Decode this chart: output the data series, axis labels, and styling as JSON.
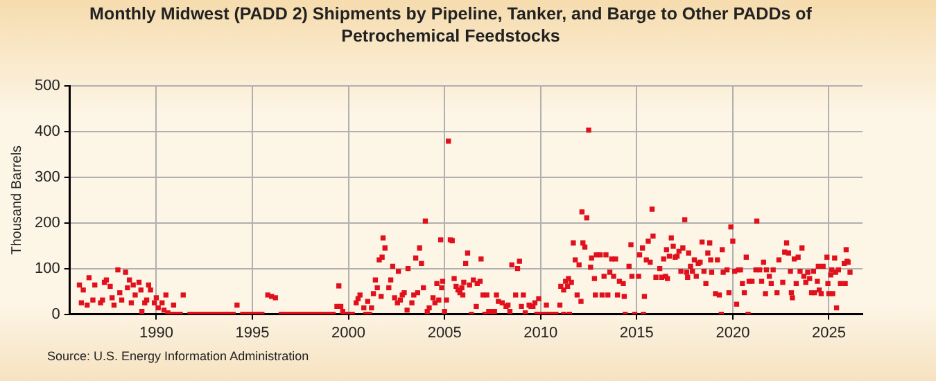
{
  "chart_data": {
    "type": "scatter",
    "title": "Monthly Midwest (PADD 2) Shipments by Pipeline, Tanker, and Barge to Other PADDs of Petrochemical Feedstocks",
    "ylabel": "Thousand Barrels",
    "annotations": [
      "Source: U.S. Energy Information Administration"
    ],
    "xlim": [
      1985.5,
      2026.75
    ],
    "xticks": [
      1990,
      1995,
      2000,
      2005,
      2010,
      2015,
      2020,
      2025
    ],
    "ylim": [
      0,
      500
    ],
    "yticks": [
      0,
      100,
      200,
      300,
      400,
      500
    ],
    "grid": true,
    "legend": false,
    "marker": "square",
    "x": [
      1986.0,
      1986.2,
      1986.5,
      1986.1,
      1986.4,
      1986.8,
      1986.7,
      1987.1,
      1987.3,
      1987.4,
      1987.6,
      1987.2,
      1987.7,
      1987.8,
      1988.0,
      1988.1,
      1988.2,
      1988.4,
      1988.5,
      1988.6,
      1988.8,
      1988.7,
      1988.9,
      1989.1,
      1989.2,
      1989.25,
      1989.4,
      1989.5,
      1989.6,
      1989.7,
      1989.9,
      1990.0,
      1990.1,
      1990.3,
      1990.4,
      1990.5,
      1990.6,
      1990.9,
      1991.4,
      1994.2,
      1995.8,
      1996.0,
      1996.2,
      1990.75,
      1991.0,
      1991.25,
      1991.75,
      1992.0,
      1992.25,
      1992.5,
      1992.75,
      1993.0,
      1993.25,
      1993.5,
      1993.75,
      1994.0,
      1994.5,
      1994.75,
      1995.0,
      1995.25,
      1995.5,
      1996.5,
      1996.75,
      1997.0,
      1997.25,
      1997.5,
      1997.75,
      1998.0,
      1998.25,
      1998.5,
      1998.75,
      1999.0,
      1999.2,
      1999.8,
      2000.0,
      2000.2,
      2000.9,
      2001.1,
      1999.5,
      1999.4,
      1999.6,
      1999.7,
      2000.5,
      2000.4,
      2000.6,
      2000.8,
      2001.0,
      2001.2,
      2001.3,
      2001.4,
      2001.5,
      2001.7,
      2001.6,
      2001.75,
      2001.8,
      2001.9,
      2002.1,
      2002.2,
      2002.3,
      2002.4,
      2002.55,
      2002.6,
      2002.7,
      2002.8,
      2002.9,
      2003.05,
      2003.1,
      2003.3,
      2003.4,
      2003.5,
      2003.6,
      2003.7,
      2003.8,
      2003.9,
      2004.0,
      2004.1,
      2004.2,
      2004.4,
      2004.5,
      2004.6,
      2004.7,
      2004.8,
      2004.85,
      2004.9,
      2005.0,
      2005.1,
      2005.2,
      2005.3,
      2005.4,
      2005.5,
      2005.6,
      2005.7,
      2005.8,
      2005.9,
      2005.95,
      2006.0,
      2006.1,
      2006.2,
      2006.3,
      2006.4,
      2006.5,
      2006.65,
      2006.7,
      2006.85,
      2006.9,
      2007.0,
      2007.1,
      2007.2,
      2007.3,
      2007.5,
      2007.6,
      2007.7,
      2007.8,
      2008.0,
      2008.2,
      2008.3,
      2008.4,
      2008.5,
      2008.7,
      2008.8,
      2008.9,
      2009.0,
      2009.1,
      2009.2,
      2009.4,
      2009.5,
      2009.6,
      2009.7,
      2009.9,
      2010.0,
      2010.3,
      2010.6,
      2011.0,
      2011.05,
      2011.2,
      2011.3,
      2011.4,
      2011.45,
      2011.5,
      2011.6,
      2011.7,
      2011.8,
      2011.9,
      2012.0,
      2012.1,
      2012.15,
      2012.2,
      2012.3,
      2012.4,
      2012.5,
      2012.6,
      2012.65,
      2012.8,
      2012.85,
      2012.9,
      2013.1,
      2013.2,
      2013.3,
      2013.4,
      2013.5,
      2013.6,
      2013.7,
      2013.8,
      2013.9,
      2014.0,
      2014.1,
      2014.3,
      2014.35,
      2014.4,
      2014.6,
      2014.7,
      2014.75,
      2009.8,
      2010.2,
      2010.4,
      2010.8,
      2011.2,
      2014.9,
      2015.1,
      2015.15,
      2015.3,
      2015.4,
      2015.35,
      2015.5,
      2015.6,
      2015.7,
      2015.8,
      2015.85,
      2016.0,
      2016.2,
      2016.3,
      2016.4,
      2016.5,
      2016.55,
      2016.6,
      2016.7,
      2016.8,
      2016.9,
      2017.0,
      2017.1,
      2017.2,
      2017.3,
      2017.4,
      2017.5,
      2017.6,
      2017.65,
      2017.7,
      2017.8,
      2017.9,
      2018.0,
      2018.1,
      2018.2,
      2018.3,
      2018.4,
      2018.5,
      2018.6,
      2018.7,
      2018.8,
      2018.85,
      2018.9,
      2019.1,
      2019.2,
      2019.3,
      2019.4,
      2019.45,
      2019.5,
      2019.7,
      2019.8,
      2019.9,
      2020.0,
      2020.1,
      2020.2,
      2020.3,
      2020.4,
      2020.5,
      2020.6,
      2020.7,
      2020.8,
      2020.85,
      2021.0,
      2021.2,
      2021.25,
      2021.4,
      2021.5,
      2021.6,
      2021.7,
      2021.75,
      2021.9,
      2022.0,
      2022.1,
      2022.3,
      2022.4,
      2022.6,
      2022.7,
      2022.8,
      2022.9,
      2023.0,
      2023.05,
      2023.1,
      2023.2,
      2023.3,
      2023.4,
      2023.5,
      2023.6,
      2023.7,
      2023.8,
      2023.9,
      2024.0,
      2024.1,
      2024.2,
      2024.25,
      2024.4,
      2024.45,
      2024.5,
      2024.6,
      2024.7,
      2024.9,
      2024.95,
      2025.0,
      2025.1,
      2025.15,
      2025.2,
      2025.3,
      2025.35,
      2025.4,
      2025.5,
      2025.6,
      2025.8,
      2025.85,
      2025.9,
      2025.95,
      2026.0,
      2026.1
    ],
    "series": [
      {
        "color": "#e0101c",
        "values": [
          64,
          53,
          80,
          25,
          20,
          64,
          31,
          25,
          70,
          75,
          61,
          31,
          36,
          20,
          97,
          47,
          31,
          92,
          58,
          75,
          64,
          25,
          42,
          70,
          53,
          6,
          25,
          31,
          64,
          53,
          25,
          36,
          14,
          25,
          9,
          42,
          3,
          20,
          42,
          20,
          42,
          39,
          36,
          0,
          0,
          0,
          0,
          0,
          0,
          0,
          0,
          0,
          0,
          0,
          0,
          0,
          0,
          0,
          0,
          0,
          0,
          0,
          0,
          0,
          0,
          0,
          0,
          0,
          0,
          0,
          0,
          0,
          0,
          0,
          0,
          0,
          0,
          0,
          62,
          17,
          17,
          6,
          34,
          25,
          42,
          14,
          28,
          14,
          45,
          75,
          58,
          39,
          119,
          125,
          167,
          145,
          58,
          75,
          105,
          36,
          25,
          94,
          31,
          42,
          47,
          9,
          100,
          25,
          42,
          123,
          47,
          145,
          111,
          58,
          204,
          6,
          14,
          36,
          25,
          67,
          31,
          163,
          58,
          72,
          6,
          31,
          379,
          163,
          161,
          78,
          61,
          53,
          47,
          58,
          42,
          70,
          111,
          134,
          64,
          0,
          75,
          17,
          67,
          72,
          121,
          42,
          0,
          42,
          6,
          6,
          6,
          42,
          28,
          25,
          17,
          20,
          6,
          108,
          42,
          100,
          116,
          17,
          42,
          3,
          20,
          17,
          17,
          25,
          34,
          0,
          20,
          0,
          20,
          61,
          53,
          72,
          61,
          78,
          0,
          70,
          156,
          119,
          42,
          108,
          28,
          224,
          156,
          147,
          211,
          403,
          103,
          123,
          78,
          42,
          130,
          130,
          42,
          83,
          130,
          42,
          92,
          121,
          83,
          121,
          42,
          72,
          67,
          39,
          0,
          105,
          152,
          83,
          0,
          0,
          0,
          0,
          0,
          0,
          83,
          130,
          145,
          39,
          0,
          119,
          160,
          114,
          230,
          171,
          81,
          100,
          81,
          121,
          83,
          141,
          78,
          127,
          167,
          149,
          125,
          127,
          138,
          94,
          145,
          207,
          92,
          81,
          134,
          105,
          94,
          119,
          83,
          111,
          114,
          158,
          94,
          67,
          134,
          156,
          119,
          92,
          45,
          119,
          42,
          0,
          141,
          92,
          97,
          47,
          191,
          160,
          94,
          22,
          97,
          97,
          67,
          47,
          125,
          0,
          72,
          72,
          97,
          204,
          97,
          72,
          114,
          45,
          97,
          83,
          67,
          97,
          47,
          119,
          70,
          136,
          156,
          134,
          94,
          47,
          36,
          121,
          67,
          125,
          94,
          145,
          83,
          70,
          92,
          78,
          47,
          94,
          47,
          72,
          105,
          53,
          45,
          105,
          125,
          67,
          45,
          86,
          97,
          45,
          123,
          92,
          14,
          97,
          67,
          111,
          67,
          141,
          116,
          114,
          92
        ]
      }
    ]
  }
}
